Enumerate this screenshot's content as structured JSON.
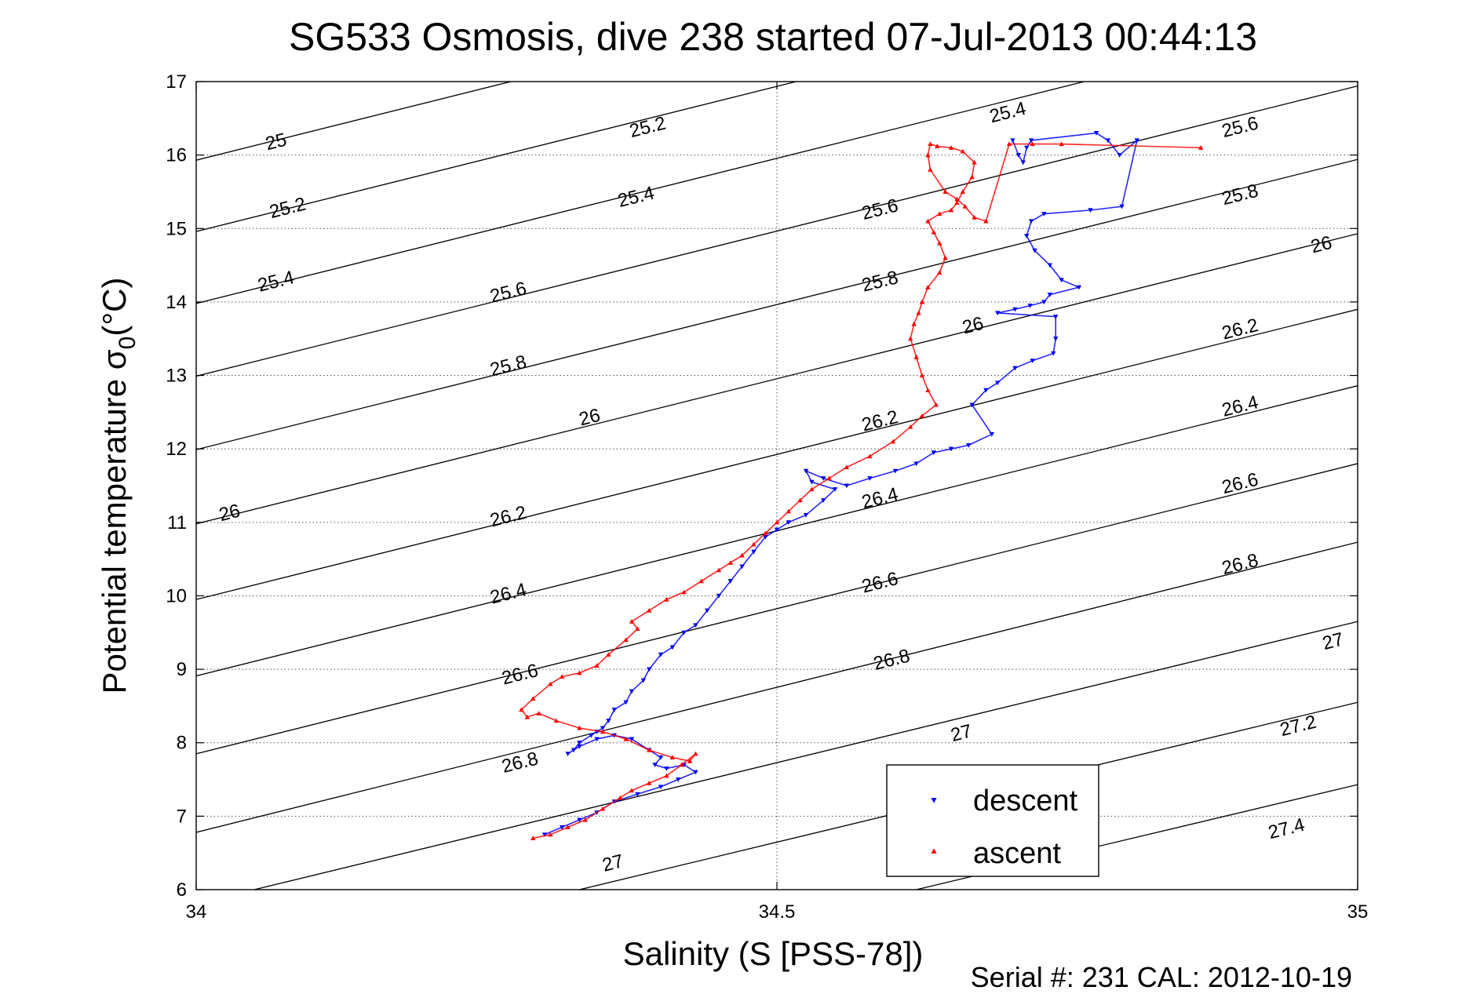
{
  "chart_data": {
    "type": "scatter",
    "title": "SG533 Osmosis, dive 238 started 07-Jul-2013 00:44:13",
    "xlabel": "Salinity (S [PSS-78])",
    "ylabel_main": "Potential temperature σ",
    "ylabel_sub": "0",
    "ylabel_unit": "(°C)",
    "footer": "Serial #: 231  CAL: 2012-10-19",
    "xlim": [
      34,
      35
    ],
    "ylim": [
      6,
      17
    ],
    "x_ticks": [
      34,
      34.5,
      35
    ],
    "x_tick_labels": [
      "34",
      "34.5",
      "35"
    ],
    "y_ticks": [
      6,
      7,
      8,
      9,
      10,
      11,
      12,
      13,
      14,
      15,
      16,
      17
    ],
    "y_tick_labels": [
      "6",
      "7",
      "8",
      "9",
      "10",
      "11",
      "12",
      "13",
      "14",
      "15",
      "16",
      "17"
    ],
    "grid": "dotted",
    "legend_position": "bottom-right",
    "colors": {
      "descent": "#0000ff",
      "ascent": "#ff0000",
      "contour": "#000000"
    },
    "contours": [
      {
        "level": 25.0,
        "line": [
          [
            34.0,
            15.93
          ],
          [
            35.0,
            19.88
          ]
        ]
      },
      {
        "level": 25.2,
        "line": [
          [
            34.0,
            14.96
          ],
          [
            35.0,
            18.91
          ]
        ]
      },
      {
        "level": 25.4,
        "line": [
          [
            34.0,
            13.98
          ],
          [
            35.0,
            17.93
          ]
        ]
      },
      {
        "level": 25.6,
        "line": [
          [
            34.0,
            12.99
          ],
          [
            35.0,
            16.94
          ]
        ]
      },
      {
        "level": 25.8,
        "line": [
          [
            34.0,
            11.99
          ],
          [
            35.0,
            15.94
          ]
        ]
      },
      {
        "level": 26.0,
        "line": [
          [
            34.0,
            10.98
          ],
          [
            35.0,
            14.93
          ]
        ]
      },
      {
        "level": 26.2,
        "line": [
          [
            34.0,
            9.95
          ],
          [
            35.0,
            13.9
          ]
        ]
      },
      {
        "level": 26.4,
        "line": [
          [
            34.0,
            8.91
          ],
          [
            35.0,
            12.86
          ]
        ]
      },
      {
        "level": 26.6,
        "line": [
          [
            34.0,
            7.85
          ],
          [
            35.0,
            11.8
          ]
        ]
      },
      {
        "level": 26.8,
        "line": [
          [
            34.0,
            6.78
          ],
          [
            35.0,
            10.73
          ]
        ]
      },
      {
        "level": 27.0,
        "line": [
          [
            34.05,
            6.0
          ],
          [
            35.0,
            9.65
          ]
        ]
      },
      {
        "level": 27.2,
        "line": [
          [
            34.33,
            6.0
          ],
          [
            35.0,
            8.55
          ]
        ]
      },
      {
        "level": 27.4,
        "line": [
          [
            34.62,
            6.0
          ],
          [
            35.0,
            7.43
          ]
        ]
      }
    ],
    "contour_labels": [
      {
        "text": "25",
        "x": 34.07,
        "y": 16.1
      },
      {
        "text": "25.2",
        "x": 34.39,
        "y": 16.3
      },
      {
        "text": "25.4",
        "x": 34.7,
        "y": 16.5
      },
      {
        "text": "25.6",
        "x": 34.9,
        "y": 16.3
      },
      {
        "text": "25.2",
        "x": 34.08,
        "y": 15.2
      },
      {
        "text": "25.4",
        "x": 34.38,
        "y": 15.35
      },
      {
        "text": "25.6",
        "x": 34.59,
        "y": 15.18
      },
      {
        "text": "25.8",
        "x": 34.9,
        "y": 15.38
      },
      {
        "text": "25.4",
        "x": 34.07,
        "y": 14.2
      },
      {
        "text": "25.6",
        "x": 34.27,
        "y": 14.05
      },
      {
        "text": "25.8",
        "x": 34.59,
        "y": 14.2
      },
      {
        "text": "26",
        "x": 34.97,
        "y": 14.7
      },
      {
        "text": "25.8",
        "x": 34.27,
        "y": 13.05
      },
      {
        "text": "26",
        "x": 34.67,
        "y": 13.6
      },
      {
        "text": "26.2",
        "x": 34.9,
        "y": 13.55
      },
      {
        "text": "26",
        "x": 34.34,
        "y": 12.35
      },
      {
        "text": "26.2",
        "x": 34.59,
        "y": 12.3
      },
      {
        "text": "26.4",
        "x": 34.9,
        "y": 12.5
      },
      {
        "text": "26",
        "x": 34.03,
        "y": 11.05
      },
      {
        "text": "26.2",
        "x": 34.27,
        "y": 11.0
      },
      {
        "text": "26.4",
        "x": 34.59,
        "y": 11.25
      },
      {
        "text": "26.6",
        "x": 34.9,
        "y": 11.45
      },
      {
        "text": "26.4",
        "x": 34.27,
        "y": 9.95
      },
      {
        "text": "26.6",
        "x": 34.59,
        "y": 10.1
      },
      {
        "text": "26.8",
        "x": 34.9,
        "y": 10.35
      },
      {
        "text": "26.6",
        "x": 34.28,
        "y": 8.85
      },
      {
        "text": "26.8",
        "x": 34.6,
        "y": 9.05
      },
      {
        "text": "27",
        "x": 34.98,
        "y": 9.3
      },
      {
        "text": "26.8",
        "x": 34.28,
        "y": 7.65
      },
      {
        "text": "27",
        "x": 34.66,
        "y": 8.05
      },
      {
        "text": "27.2",
        "x": 34.95,
        "y": 8.15
      },
      {
        "text": "27",
        "x": 34.36,
        "y": 6.28
      },
      {
        "text": "27.4",
        "x": 34.94,
        "y": 6.75
      }
    ],
    "series": [
      {
        "name": "descent",
        "marker": "triangle-down",
        "x": [
          34.703,
          34.708,
          34.712,
          34.715,
          34.719,
          34.775,
          34.785,
          34.795,
          34.81,
          34.797,
          34.77,
          34.73,
          34.719,
          34.715,
          34.722,
          34.735,
          34.745,
          34.76,
          34.735,
          34.73,
          34.718,
          34.705,
          34.69,
          34.74,
          34.74,
          34.738,
          34.72,
          34.705,
          34.69,
          34.68,
          34.668,
          34.685,
          34.665,
          34.65,
          34.635,
          34.62,
          34.602,
          34.58,
          34.56,
          34.54,
          34.525,
          34.53,
          34.55,
          34.54,
          34.525,
          34.51,
          34.5,
          34.49,
          34.48,
          34.47,
          34.46,
          34.45,
          34.44,
          34.43,
          34.42,
          34.41,
          34.4,
          34.39,
          34.385,
          34.375,
          34.37,
          34.36,
          34.355,
          34.35,
          34.345,
          34.34,
          34.33,
          34.325,
          34.32,
          34.33,
          34.345,
          34.36,
          34.375,
          34.39,
          34.4,
          34.395,
          34.405,
          34.42,
          34.43,
          34.415,
          34.4,
          34.38,
          34.36,
          34.345,
          34.33,
          34.315,
          34.3
        ],
        "y": [
          16.2,
          16.0,
          15.9,
          16.1,
          16.2,
          16.3,
          16.2,
          16.0,
          16.2,
          15.3,
          15.25,
          15.2,
          15.1,
          14.9,
          14.7,
          14.5,
          14.3,
          14.2,
          14.1,
          14.0,
          13.95,
          13.9,
          13.85,
          13.8,
          13.5,
          13.3,
          13.2,
          13.1,
          12.9,
          12.8,
          12.6,
          12.2,
          12.05,
          12.0,
          11.95,
          11.8,
          11.7,
          11.6,
          11.5,
          11.6,
          11.7,
          11.55,
          11.45,
          11.3,
          11.1,
          11.0,
          10.9,
          10.8,
          10.6,
          10.4,
          10.2,
          10.0,
          9.8,
          9.6,
          9.5,
          9.3,
          9.2,
          9.0,
          8.85,
          8.7,
          8.55,
          8.45,
          8.3,
          8.2,
          8.15,
          8.1,
          8.0,
          7.9,
          7.85,
          7.95,
          8.05,
          8.1,
          8.05,
          7.9,
          7.8,
          7.7,
          7.65,
          7.7,
          7.6,
          7.5,
          7.4,
          7.3,
          7.2,
          7.05,
          6.95,
          6.85,
          6.75
        ]
      },
      {
        "name": "ascent",
        "marker": "triangle-up",
        "x": [
          34.29,
          34.305,
          34.32,
          34.335,
          34.35,
          34.365,
          34.375,
          34.39,
          34.405,
          34.418,
          34.43,
          34.425,
          34.41,
          34.39,
          34.37,
          34.35,
          34.33,
          34.31,
          34.295,
          34.285,
          34.28,
          34.29,
          34.305,
          34.315,
          34.33,
          34.345,
          34.355,
          34.37,
          34.38,
          34.375,
          34.39,
          34.405,
          34.42,
          34.435,
          34.45,
          34.46,
          34.47,
          34.48,
          34.49,
          34.5,
          34.51,
          34.52,
          34.53,
          34.545,
          34.56,
          34.58,
          34.6,
          34.615,
          34.625,
          34.637,
          34.63,
          34.625,
          34.62,
          34.615,
          34.618,
          34.622,
          34.625,
          34.63,
          34.64,
          34.645,
          34.64,
          34.635,
          34.63,
          34.64,
          34.65,
          34.655,
          34.66,
          34.668,
          34.67,
          34.66,
          34.65,
          34.638,
          34.632,
          34.63,
          34.632,
          34.645,
          34.655,
          34.662,
          34.67,
          34.68,
          34.7,
          34.72,
          34.745,
          34.865
        ],
        "y": [
          6.7,
          6.75,
          6.85,
          6.95,
          7.1,
          7.25,
          7.35,
          7.45,
          7.55,
          7.7,
          7.85,
          7.75,
          7.8,
          7.9,
          8.05,
          8.15,
          8.2,
          8.3,
          8.4,
          8.35,
          8.45,
          8.6,
          8.8,
          8.9,
          8.95,
          9.05,
          9.2,
          9.4,
          9.55,
          9.65,
          9.8,
          9.95,
          10.05,
          10.2,
          10.35,
          10.45,
          10.55,
          10.7,
          10.85,
          11.0,
          11.15,
          11.3,
          11.45,
          11.6,
          11.75,
          11.9,
          12.1,
          12.3,
          12.45,
          12.6,
          12.8,
          13.0,
          13.25,
          13.5,
          13.7,
          13.85,
          14.0,
          14.2,
          14.4,
          14.6,
          14.8,
          14.95,
          15.1,
          15.2,
          15.25,
          15.35,
          15.5,
          15.7,
          15.9,
          16.05,
          16.1,
          16.12,
          16.15,
          16.0,
          15.8,
          15.5,
          15.4,
          15.3,
          15.15,
          15.1,
          16.15,
          16.15,
          16.15,
          16.1
        ]
      }
    ],
    "legend": [
      {
        "label": "descent",
        "series": "descent"
      },
      {
        "label": "ascent",
        "series": "ascent"
      }
    ]
  }
}
